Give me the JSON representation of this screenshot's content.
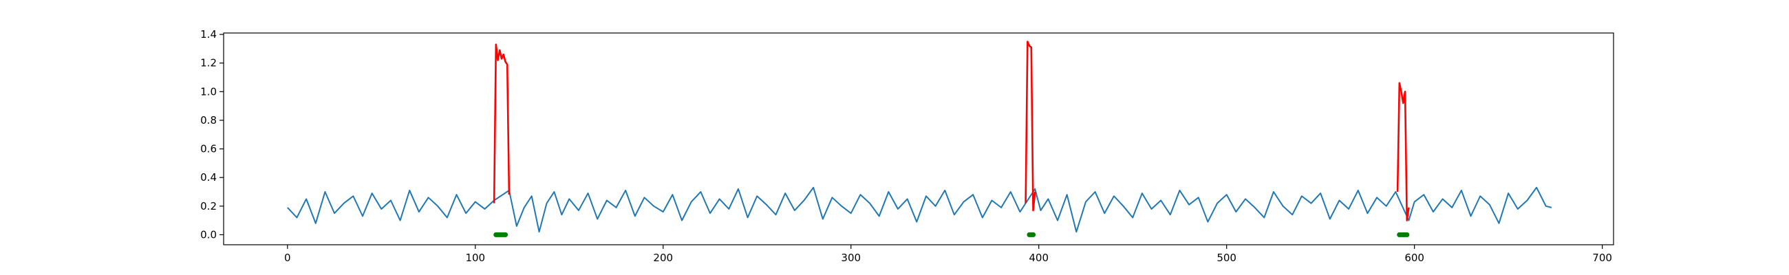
{
  "chart_data": {
    "type": "line",
    "title": "",
    "xlabel": "",
    "ylabel": "",
    "xlim": [
      -34,
      706
    ],
    "ylim": [
      -0.07,
      1.41
    ],
    "grid": false,
    "x_ticks": [
      0,
      100,
      200,
      300,
      400,
      500,
      600,
      700
    ],
    "x_tick_labels": [
      "0",
      "100",
      "200",
      "300",
      "400",
      "500",
      "600",
      "700"
    ],
    "y_ticks": [
      0.0,
      0.2,
      0.4,
      0.6,
      0.8,
      1.0,
      1.2,
      1.4
    ],
    "y_tick_labels": [
      "0.0",
      "0.2",
      "0.4",
      "0.6",
      "0.8",
      "1.0",
      "1.2",
      "1.4"
    ],
    "colors": {
      "signal": "#1f77b4",
      "anomaly": "#ff0000",
      "marker": "#008000"
    },
    "series": [
      {
        "role": "signal",
        "x": [
          0,
          5,
          10,
          15,
          20,
          25,
          30,
          35,
          40,
          45,
          50,
          55,
          60,
          65,
          70,
          75,
          80,
          85,
          90,
          95,
          100,
          105,
          110,
          118,
          122,
          126,
          130,
          134,
          138,
          142,
          146,
          150,
          155,
          160,
          165,
          170,
          175,
          180,
          185,
          190,
          195,
          200,
          205,
          210,
          215,
          220,
          225,
          230,
          235,
          240,
          245,
          250,
          255,
          260,
          265,
          270,
          275,
          280,
          285,
          290,
          295,
          300,
          305,
          310,
          315,
          320,
          325,
          330,
          335,
          340,
          345,
          350,
          355,
          360,
          365,
          370,
          375,
          380,
          385,
          390,
          392,
          398,
          401,
          405,
          410,
          415,
          420,
          425,
          430,
          435,
          440,
          445,
          450,
          455,
          460,
          465,
          470,
          475,
          480,
          485,
          490,
          495,
          500,
          505,
          510,
          515,
          520,
          525,
          530,
          535,
          540,
          545,
          550,
          555,
          560,
          565,
          570,
          575,
          580,
          585,
          590,
          597,
          600,
          605,
          610,
          615,
          620,
          625,
          630,
          635,
          640,
          645,
          650,
          655,
          660,
          665,
          670,
          673
        ],
        "y": [
          0.19,
          0.12,
          0.25,
          0.08,
          0.3,
          0.15,
          0.22,
          0.27,
          0.13,
          0.29,
          0.18,
          0.24,
          0.1,
          0.31,
          0.16,
          0.26,
          0.2,
          0.12,
          0.28,
          0.15,
          0.23,
          0.18,
          0.24,
          0.31,
          0.06,
          0.19,
          0.27,
          0.02,
          0.22,
          0.3,
          0.14,
          0.25,
          0.17,
          0.29,
          0.11,
          0.24,
          0.19,
          0.31,
          0.13,
          0.26,
          0.2,
          0.16,
          0.28,
          0.1,
          0.23,
          0.3,
          0.15,
          0.25,
          0.18,
          0.32,
          0.12,
          0.27,
          0.21,
          0.14,
          0.29,
          0.17,
          0.24,
          0.33,
          0.11,
          0.26,
          0.2,
          0.15,
          0.28,
          0.22,
          0.13,
          0.3,
          0.18,
          0.25,
          0.09,
          0.27,
          0.2,
          0.31,
          0.14,
          0.23,
          0.28,
          0.12,
          0.24,
          0.19,
          0.3,
          0.16,
          0.2,
          0.32,
          0.17,
          0.25,
          0.1,
          0.28,
          0.02,
          0.23,
          0.3,
          0.15,
          0.27,
          0.2,
          0.12,
          0.29,
          0.18,
          0.24,
          0.14,
          0.31,
          0.21,
          0.26,
          0.09,
          0.22,
          0.28,
          0.16,
          0.25,
          0.19,
          0.12,
          0.3,
          0.2,
          0.14,
          0.27,
          0.22,
          0.29,
          0.11,
          0.24,
          0.18,
          0.31,
          0.15,
          0.26,
          0.2,
          0.3,
          0.1,
          0.23,
          0.28,
          0.16,
          0.25,
          0.19,
          0.31,
          0.13,
          0.27,
          0.21,
          0.08,
          0.29,
          0.18,
          0.24,
          0.33,
          0.2,
          0.19
        ]
      },
      {
        "role": "anomaly",
        "x": [
          110,
          111,
          112,
          113,
          114,
          115,
          116,
          117,
          118
        ],
        "y": [
          0.22,
          1.33,
          1.22,
          1.29,
          1.23,
          1.26,
          1.21,
          1.19,
          0.28
        ]
      },
      {
        "role": "anomaly",
        "x": [
          393,
          394,
          395,
          396,
          397,
          398
        ],
        "y": [
          0.22,
          1.35,
          1.32,
          1.31,
          0.17,
          0.3
        ]
      },
      {
        "role": "anomaly",
        "x": [
          591,
          592,
          593,
          594,
          595,
          596,
          597
        ],
        "y": [
          0.3,
          1.06,
          1.0,
          0.92,
          1.0,
          0.1,
          0.19
        ]
      }
    ],
    "markers": [
      {
        "x": 111,
        "y": 0.0
      },
      {
        "x": 112,
        "y": 0.0
      },
      {
        "x": 113,
        "y": 0.0
      },
      {
        "x": 114,
        "y": 0.0
      },
      {
        "x": 115,
        "y": 0.0
      },
      {
        "x": 116,
        "y": 0.0
      },
      {
        "x": 395,
        "y": 0.0
      },
      {
        "x": 396,
        "y": 0.0
      },
      {
        "x": 397,
        "y": 0.0
      },
      {
        "x": 592,
        "y": 0.0
      },
      {
        "x": 593,
        "y": 0.0
      },
      {
        "x": 594,
        "y": 0.0
      },
      {
        "x": 595,
        "y": 0.0
      },
      {
        "x": 596,
        "y": 0.0
      }
    ]
  }
}
